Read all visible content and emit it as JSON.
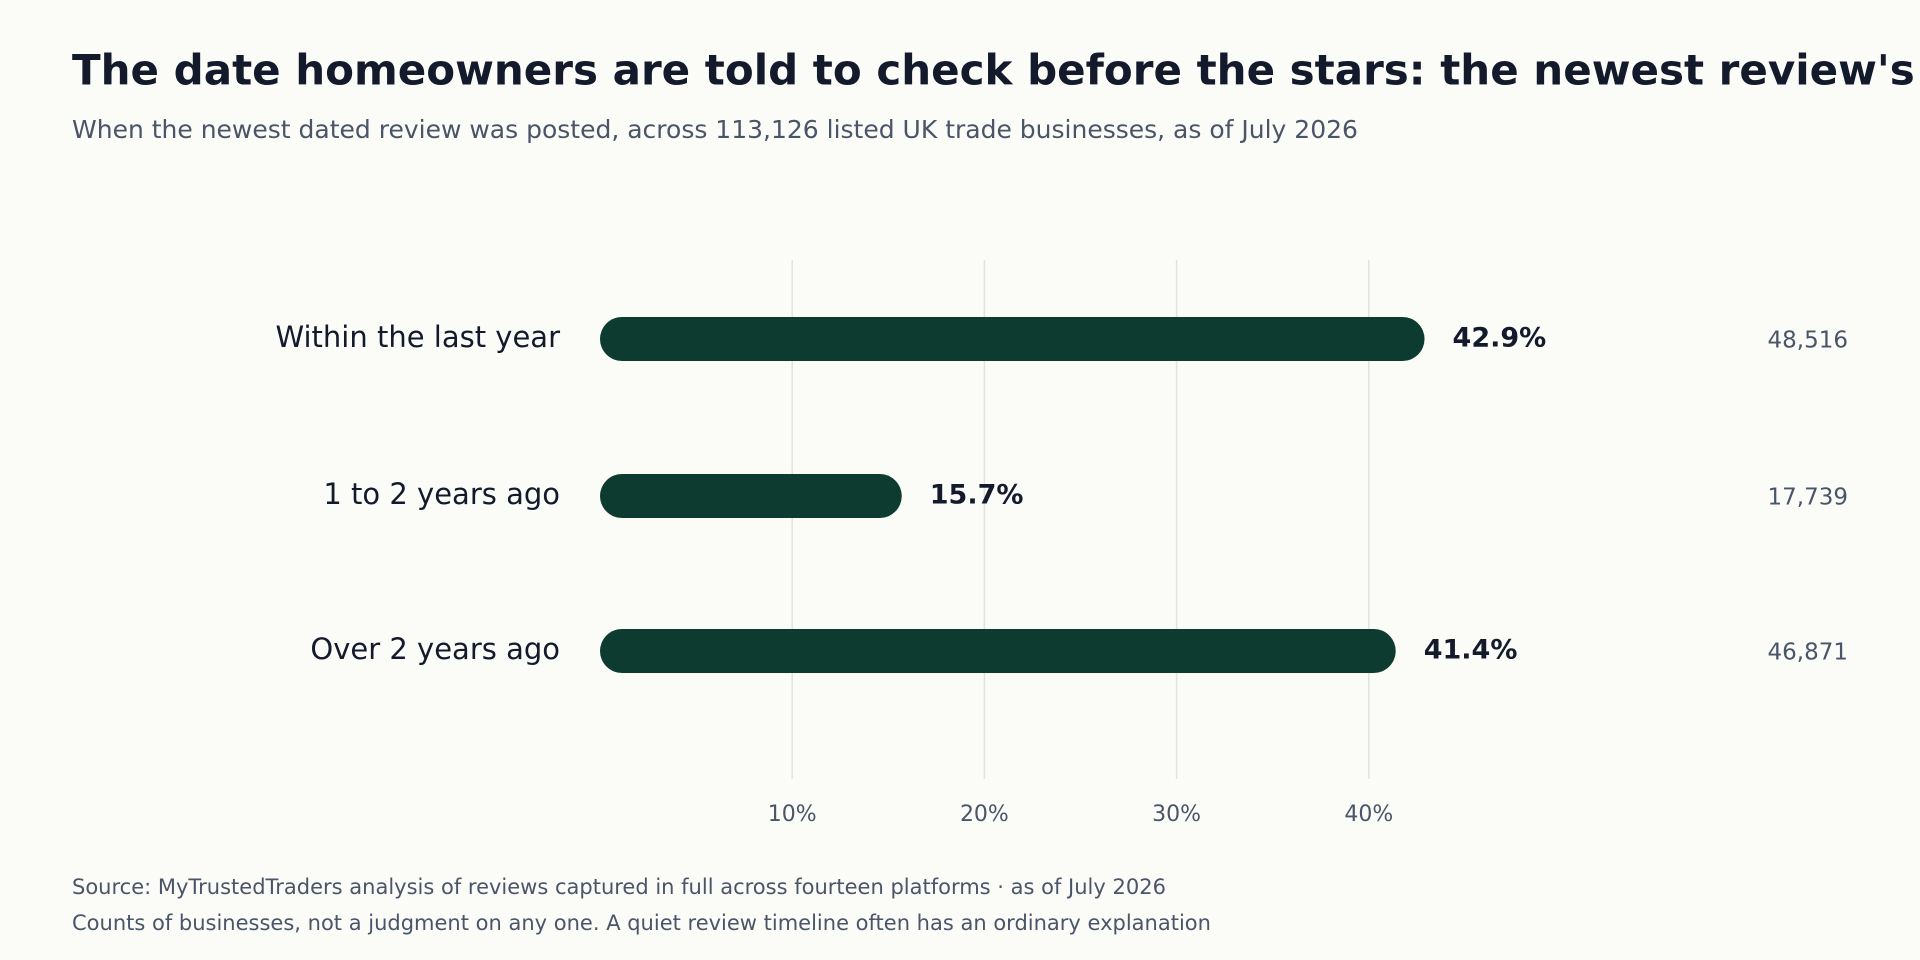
{
  "chart_data": {
    "type": "bar",
    "orientation": "horizontal",
    "title": "The date homeowners are told to check before the stars: the newest review's",
    "subtitle": "When the newest dated review was posted, across 113,126 listed UK trade businesses, as of July 2026",
    "categories": [
      "Within the last year",
      "1 to 2 years ago",
      "Over 2 years ago"
    ],
    "values": [
      42.9,
      15.7,
      41.4
    ],
    "value_labels": [
      "42.9%",
      "15.7%",
      "41.4%"
    ],
    "counts": [
      48516,
      17739,
      46871
    ],
    "count_labels": [
      "48,516",
      "17,739",
      "46,871"
    ],
    "color": "#0d3b30",
    "xlim": [
      0,
      50
    ],
    "xticks": [
      {
        "value": 10,
        "label": "10%"
      },
      {
        "value": 20,
        "label": "20%"
      },
      {
        "value": 30,
        "label": "30%"
      },
      {
        "value": 40,
        "label": "40%"
      }
    ],
    "grid": true,
    "footnotes": [
      "Source: MyTrustedTraders analysis of reviews captured in full across fourteen platforms  ·  as of July 2026",
      "Counts of businesses, not a judgment on any one. A quiet review timeline often has an ordinary explanation"
    ]
  }
}
